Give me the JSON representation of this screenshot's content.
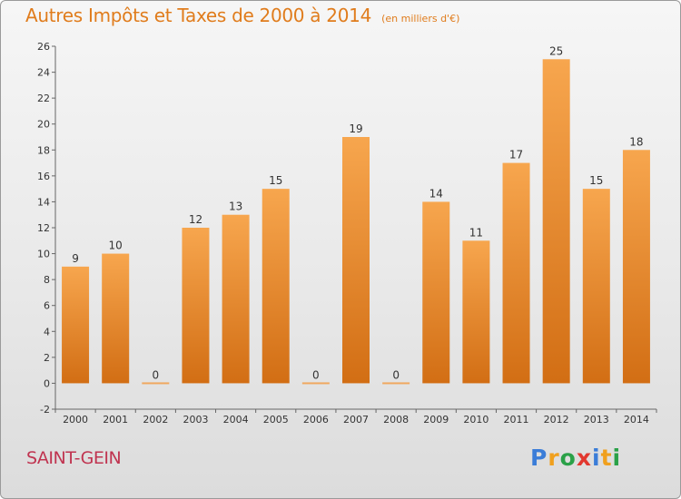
{
  "header": {
    "title": "Autres Impôts et Taxes de 2000 à 2014",
    "unit": "(en milliers d'€)"
  },
  "commune": "SAINT-GEIN",
  "logo": {
    "text": "Proxiti",
    "letters": [
      "P",
      "r",
      "o",
      "x",
      "i",
      "t",
      "i"
    ],
    "colors": [
      "#3b7dd8",
      "#f0a01e",
      "#2aa148",
      "#e2382f",
      "#3b7dd8",
      "#f0a01e",
      "#2aa148"
    ]
  },
  "colors": {
    "bar_top": "#f7a64e",
    "bar_bottom": "#d26e14",
    "zero_bar": "#f0a860",
    "title": "#e07c1c",
    "commune": "#c03450"
  },
  "chart_data": {
    "type": "bar",
    "categories": [
      "2000",
      "2001",
      "2002",
      "2003",
      "2004",
      "2005",
      "2006",
      "2007",
      "2008",
      "2009",
      "2010",
      "2011",
      "2012",
      "2013",
      "2014"
    ],
    "values": [
      9,
      10,
      0,
      12,
      13,
      15,
      0,
      19,
      0,
      14,
      11,
      17,
      25,
      15,
      18
    ],
    "title": "Autres Impôts et Taxes de 2000 à 2014",
    "ylabel": "",
    "xlabel": "",
    "ylim": [
      -2,
      26
    ],
    "yticks": [
      -2,
      0,
      2,
      4,
      6,
      8,
      10,
      12,
      14,
      16,
      18,
      20,
      22,
      24,
      26
    ],
    "grid": false,
    "data_labels": true
  }
}
